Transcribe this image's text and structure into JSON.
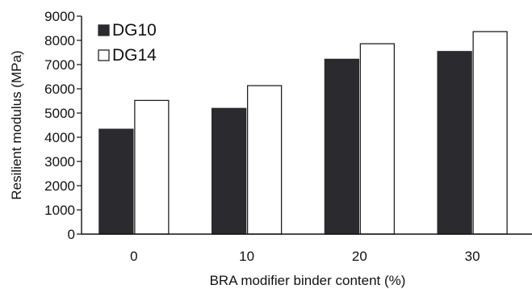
{
  "chart_data": {
    "type": "bar",
    "title": "",
    "xlabel": "BRA modifier binder content (%)",
    "ylabel": "Resilient modulus (MPa)",
    "categories": [
      "0",
      "10",
      "20",
      "30"
    ],
    "ylim": [
      0,
      9000
    ],
    "yticks": [
      "0",
      "1000",
      "2000",
      "3000",
      "4000",
      "5000",
      "6000",
      "7000",
      "8000",
      "9000"
    ],
    "grid": false,
    "legend_position": "top-left",
    "series": [
      {
        "name": "DG10",
        "values": [
          4330,
          5190,
          7220,
          7540
        ],
        "fill": "#2b2b2f",
        "stroke": "#2b2b2f"
      },
      {
        "name": "DG14",
        "values": [
          5520,
          6130,
          7860,
          8360
        ],
        "fill": "#ffffff",
        "stroke": "#222222"
      }
    ]
  }
}
